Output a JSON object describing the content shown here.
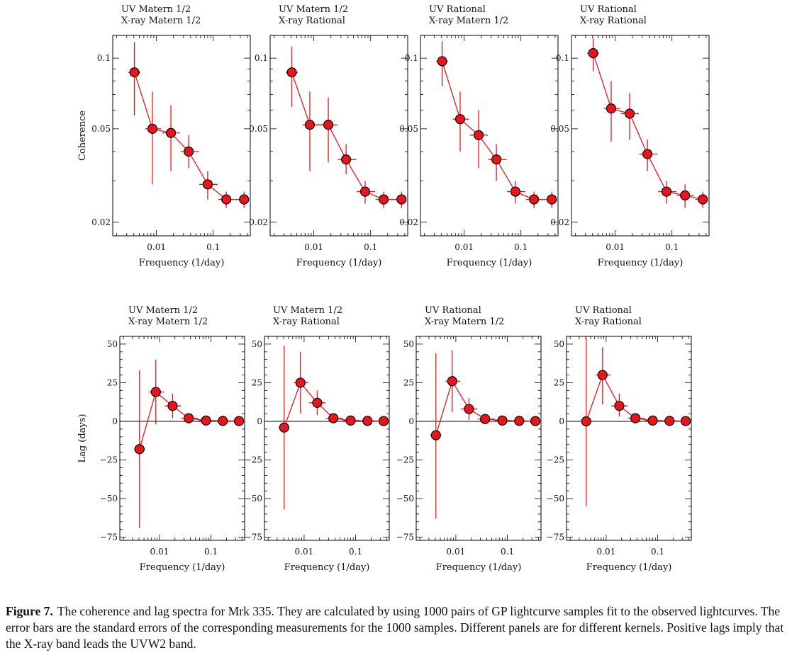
{
  "figure": {
    "markers": {
      "fill": "#e8161c",
      "stroke": "#000000",
      "line": "#e8161c"
    },
    "x_label": "Frequency (1/day)",
    "x_ticks": [
      {
        "value": 0.01,
        "label": "0.01"
      },
      {
        "value": 0.1,
        "label": "0.1"
      }
    ],
    "coherence_ylabel": "Coherence",
    "lag_ylabel": "Lag (days)"
  },
  "chart_data": [
    {
      "type": "scatter",
      "row": "coherence",
      "col": 0,
      "title_lines": [
        "UV Matern 1/2",
        "X-ray Matern 1/2"
      ],
      "ylabel": "Coherence",
      "xlabel": "Frequency (1/day)",
      "xscale": "log",
      "yscale": "log",
      "xlim": [
        0.0017,
        0.45
      ],
      "ylim": [
        0.0175,
        0.125
      ],
      "yticks": [
        {
          "value": 0.1,
          "label": "0.1"
        },
        {
          "value": 0.05,
          "label": "0.05"
        },
        {
          "value": 0.02,
          "label": "0.02"
        }
      ],
      "x": [
        0.0041,
        0.0085,
        0.018,
        0.037,
        0.08,
        0.17,
        0.35
      ],
      "y": [
        0.087,
        0.05,
        0.048,
        0.04,
        0.029,
        0.025,
        0.025
      ],
      "y_low": [
        0.057,
        0.029,
        0.033,
        0.034,
        0.025,
        0.023,
        0.023
      ],
      "y_high": [
        0.117,
        0.072,
        0.063,
        0.047,
        0.033,
        0.027,
        0.027
      ],
      "x_low": [
        0.0032,
        0.0063,
        0.0126,
        0.0265,
        0.057,
        0.122,
        0.26
      ],
      "x_high": [
        0.0052,
        0.0122,
        0.0262,
        0.056,
        0.12,
        0.245,
        0.42
      ]
    },
    {
      "type": "scatter",
      "row": "coherence",
      "col": 1,
      "title_lines": [
        "UV Matern 1/2",
        "X-ray Rational"
      ],
      "xscale": "log",
      "yscale": "log",
      "xlim": [
        0.0017,
        0.45
      ],
      "ylim": [
        0.0175,
        0.125
      ],
      "yticks": [
        {
          "value": 0.1,
          "label": "0.1"
        },
        {
          "value": 0.05,
          "label": "0.05"
        },
        {
          "value": 0.02,
          "label": "0.02"
        }
      ],
      "x": [
        0.0041,
        0.0085,
        0.018,
        0.037,
        0.08,
        0.17,
        0.35
      ],
      "y": [
        0.087,
        0.052,
        0.052,
        0.037,
        0.027,
        0.025,
        0.025
      ],
      "y_low": [
        0.062,
        0.033,
        0.036,
        0.032,
        0.024,
        0.023,
        0.023
      ],
      "y_high": [
        0.112,
        0.072,
        0.068,
        0.043,
        0.03,
        0.027,
        0.027
      ],
      "x_low": [
        0.0032,
        0.0063,
        0.0126,
        0.0265,
        0.057,
        0.122,
        0.26
      ],
      "x_high": [
        0.0052,
        0.0122,
        0.0262,
        0.056,
        0.12,
        0.245,
        0.42
      ]
    },
    {
      "type": "scatter",
      "row": "coherence",
      "col": 2,
      "title_lines": [
        "UV Rational",
        "X-ray Matern 1/2"
      ],
      "xscale": "log",
      "yscale": "log",
      "xlim": [
        0.0017,
        0.45
      ],
      "ylim": [
        0.0175,
        0.125
      ],
      "yticks": [
        {
          "value": 0.1,
          "label": "0.1"
        },
        {
          "value": 0.05,
          "label": "0.05"
        },
        {
          "value": 0.02,
          "label": "0.02"
        }
      ],
      "x": [
        0.0041,
        0.0085,
        0.018,
        0.037,
        0.08,
        0.17,
        0.35
      ],
      "y": [
        0.097,
        0.055,
        0.047,
        0.037,
        0.027,
        0.025,
        0.025
      ],
      "y_low": [
        0.076,
        0.04,
        0.034,
        0.03,
        0.024,
        0.023,
        0.023
      ],
      "y_high": [
        0.118,
        0.072,
        0.06,
        0.043,
        0.03,
        0.027,
        0.027
      ],
      "x_low": [
        0.0032,
        0.0063,
        0.0126,
        0.0265,
        0.057,
        0.122,
        0.26
      ],
      "x_high": [
        0.0052,
        0.0122,
        0.0262,
        0.056,
        0.12,
        0.245,
        0.42
      ]
    },
    {
      "type": "scatter",
      "row": "coherence",
      "col": 3,
      "title_lines": [
        "UV Rational",
        "X-ray Rational"
      ],
      "xscale": "log",
      "yscale": "log",
      "xlim": [
        0.0017,
        0.45
      ],
      "ylim": [
        0.0175,
        0.125
      ],
      "yticks": [
        {
          "value": 0.1,
          "label": "0.1"
        },
        {
          "value": 0.05,
          "label": "0.05"
        },
        {
          "value": 0.02,
          "label": "0.02"
        }
      ],
      "x": [
        0.0041,
        0.0085,
        0.018,
        0.037,
        0.08,
        0.17,
        0.35
      ],
      "y": [
        0.105,
        0.061,
        0.058,
        0.039,
        0.027,
        0.026,
        0.025
      ],
      "y_low": [
        0.088,
        0.044,
        0.045,
        0.033,
        0.024,
        0.023,
        0.023
      ],
      "y_high": [
        0.122,
        0.08,
        0.071,
        0.045,
        0.03,
        0.029,
        0.027
      ],
      "x_low": [
        0.0032,
        0.0063,
        0.0126,
        0.0265,
        0.057,
        0.122,
        0.26
      ],
      "x_high": [
        0.0052,
        0.0122,
        0.0262,
        0.056,
        0.12,
        0.245,
        0.42
      ]
    },
    {
      "type": "scatter",
      "row": "lag",
      "col": 0,
      "title_lines": [
        "UV Matern 1/2",
        "X-ray Matern 1/2"
      ],
      "ylabel": "Lag (days)",
      "xlabel": "Frequency (1/day)",
      "xscale": "log",
      "yscale": "linear",
      "xlim": [
        0.0017,
        0.45
      ],
      "ylim": [
        -77,
        55
      ],
      "yticks": [
        {
          "value": 50,
          "label": "50"
        },
        {
          "value": 25,
          "label": "25"
        },
        {
          "value": 0,
          "label": "0"
        },
        {
          "value": -25,
          "label": "−25"
        },
        {
          "value": -50,
          "label": "−50"
        },
        {
          "value": -75,
          "label": "−75"
        }
      ],
      "x": [
        0.0041,
        0.0085,
        0.018,
        0.037,
        0.08,
        0.17,
        0.35
      ],
      "y": [
        -18,
        19,
        10,
        2,
        0.5,
        0.3,
        0.2
      ],
      "y_low": [
        -69,
        -2,
        2,
        -0.5,
        -0.5,
        -0.5,
        -0.5
      ],
      "y_high": [
        33,
        40,
        18,
        4.5,
        1.5,
        1.0,
        0.8
      ],
      "x_low": [
        0.0032,
        0.0063,
        0.0126,
        0.0265,
        0.057,
        0.122,
        0.26
      ],
      "x_high": [
        0.0052,
        0.0122,
        0.0262,
        0.056,
        0.12,
        0.245,
        0.42
      ]
    },
    {
      "type": "scatter",
      "row": "lag",
      "col": 1,
      "title_lines": [
        "UV Matern 1/2",
        "X-ray Rational"
      ],
      "xscale": "log",
      "yscale": "linear",
      "xlim": [
        0.0017,
        0.45
      ],
      "ylim": [
        -77,
        55
      ],
      "yticks": [
        {
          "value": 50,
          "label": "50"
        },
        {
          "value": 25,
          "label": "25"
        },
        {
          "value": 0,
          "label": "0"
        },
        {
          "value": -25,
          "label": "−25"
        },
        {
          "value": -50,
          "label": "−50"
        },
        {
          "value": -75,
          "label": "−75"
        }
      ],
      "x": [
        0.0041,
        0.0085,
        0.018,
        0.037,
        0.08,
        0.17,
        0.35
      ],
      "y": [
        -4,
        25,
        12,
        2,
        0.5,
        0.3,
        0.2
      ],
      "y_low": [
        -57,
        5,
        4,
        -0.5,
        -0.5,
        -0.5,
        -0.5
      ],
      "y_high": [
        49,
        45,
        20,
        4.5,
        1.5,
        1.0,
        0.8
      ],
      "x_low": [
        0.0032,
        0.0063,
        0.0126,
        0.0265,
        0.057,
        0.122,
        0.26
      ],
      "x_high": [
        0.0052,
        0.0122,
        0.0262,
        0.056,
        0.12,
        0.245,
        0.42
      ]
    },
    {
      "type": "scatter",
      "row": "lag",
      "col": 2,
      "title_lines": [
        "UV Rational",
        "X-ray Matern 1/2"
      ],
      "xscale": "log",
      "yscale": "linear",
      "xlim": [
        0.0017,
        0.45
      ],
      "ylim": [
        -77,
        55
      ],
      "yticks": [
        {
          "value": 50,
          "label": "50"
        },
        {
          "value": 25,
          "label": "25"
        },
        {
          "value": 0,
          "label": "0"
        },
        {
          "value": -25,
          "label": "−25"
        },
        {
          "value": -50,
          "label": "−50"
        },
        {
          "value": -75,
          "label": "−75"
        }
      ],
      "x": [
        0.0041,
        0.0085,
        0.018,
        0.037,
        0.08,
        0.17,
        0.35
      ],
      "y": [
        -9,
        26,
        8,
        1.5,
        0.5,
        0.3,
        0.2
      ],
      "y_low": [
        -63,
        6,
        1,
        -0.5,
        -0.5,
        -0.5,
        -0.5
      ],
      "y_high": [
        44,
        46,
        15,
        3.5,
        1.5,
        1.0,
        0.8
      ],
      "x_low": [
        0.0032,
        0.0063,
        0.0126,
        0.0265,
        0.057,
        0.122,
        0.26
      ],
      "x_high": [
        0.0052,
        0.0122,
        0.0262,
        0.056,
        0.12,
        0.245,
        0.42
      ]
    },
    {
      "type": "scatter",
      "row": "lag",
      "col": 3,
      "title_lines": [
        "UV Rational",
        "X-ray Rational"
      ],
      "xscale": "log",
      "yscale": "linear",
      "xlim": [
        0.0017,
        0.45
      ],
      "ylim": [
        -77,
        55
      ],
      "yticks": [
        {
          "value": 50,
          "label": "50"
        },
        {
          "value": 25,
          "label": "25"
        },
        {
          "value": 0,
          "label": "0"
        },
        {
          "value": -25,
          "label": "−25"
        },
        {
          "value": -50,
          "label": "−50"
        },
        {
          "value": -75,
          "label": "−75"
        }
      ],
      "x": [
        0.0041,
        0.0085,
        0.018,
        0.037,
        0.08,
        0.17,
        0.35
      ],
      "y": [
        0,
        30,
        10,
        2,
        0.5,
        0.3,
        0.2
      ],
      "y_low": [
        -55,
        11,
        3,
        -0.5,
        -0.5,
        -0.5,
        -0.5
      ],
      "y_high": [
        54,
        48,
        18,
        4.5,
        1.5,
        1.0,
        0.8
      ],
      "x_low": [
        0.0032,
        0.0063,
        0.0126,
        0.0265,
        0.057,
        0.122,
        0.26
      ],
      "x_high": [
        0.0052,
        0.0122,
        0.0262,
        0.056,
        0.12,
        0.245,
        0.42
      ]
    }
  ],
  "caption": {
    "label": "Figure 7.",
    "text": "The coherence and lag spectra for Mrk 335. They are calculated by using 1000 pairs of GP lightcurve samples fit to the observed lightcurves. The error bars are the standard errors of the corresponding measurements for the 1000 samples. Different panels are for different kernels. Positive lags imply that the X-ray band leads the UVW2 band."
  }
}
